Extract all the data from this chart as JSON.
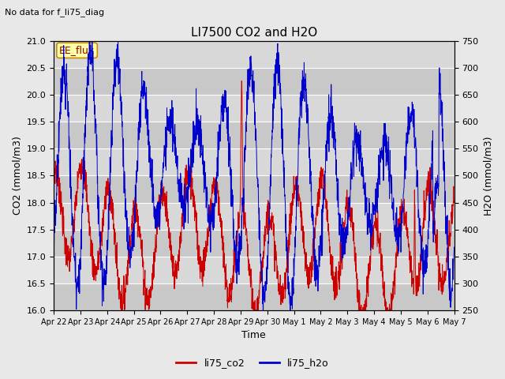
{
  "title": "LI7500 CO2 and H2O",
  "subtitle": "No data for f_li75_diag",
  "xlabel": "Time",
  "ylabel_left": "CO2 (mmol/m3)",
  "ylabel_right": "H2O (mmol/m3)",
  "ylim_left": [
    16.0,
    21.0
  ],
  "ylim_right": [
    250,
    750
  ],
  "annotation": "EE_flux",
  "legend_labels": [
    "li75_co2",
    "li75_h2o"
  ],
  "legend_colors": [
    "#cc0000",
    "#0000cc"
  ],
  "co2_color": "#cc0000",
  "h2o_color": "#0000cc",
  "background_color": "#e8e8e8",
  "plot_bg_color": "#d8d8d8",
  "n_points": 2000,
  "seed": 7,
  "x_ticks": [
    "Apr 22",
    "Apr 23",
    "Apr 24",
    "Apr 25",
    "Apr 26",
    "Apr 27",
    "Apr 28",
    "Apr 29",
    "Apr 30",
    "May 1",
    "May 2",
    "May 3",
    "May 4",
    "May 5",
    "May 6",
    "May 7"
  ],
  "grid_color": "#c0c0c0",
  "title_fontsize": 11,
  "label_fontsize": 9,
  "tick_fontsize": 8
}
